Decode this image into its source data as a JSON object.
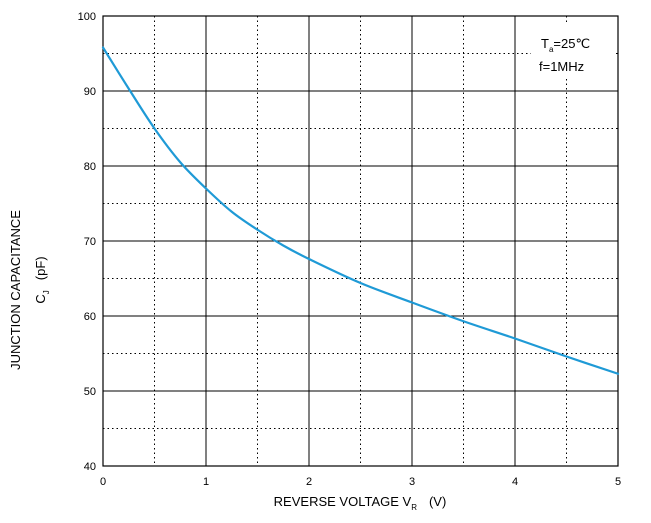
{
  "chart_data": {
    "type": "line",
    "title": "",
    "xlabel": {
      "main": "REVERSE VOLTAGE   V",
      "sub": "R",
      "unit": "(V)"
    },
    "ylabel": {
      "line1": "JUNCTION CAPACITANCE",
      "line2_main": "C",
      "line2_sub": "J",
      "line2_unit": "(pF)"
    },
    "xlim": [
      0,
      5
    ],
    "ylim": [
      40,
      100
    ],
    "xticks": [
      "0",
      "1",
      "2",
      "3",
      "4",
      "5"
    ],
    "yticks": [
      "40",
      "50",
      "60",
      "70",
      "80",
      "90",
      "100"
    ],
    "grid": {
      "major": "solid",
      "minor": "dotted"
    },
    "annotation": {
      "line1_main": "T",
      "line1_sub": "a",
      "line1_rest": "=25℃",
      "line2": "f=1MHz"
    },
    "series": [
      {
        "color": "#1f9ad6",
        "x": [
          0,
          0.25,
          0.5,
          0.75,
          1.0,
          1.25,
          1.5,
          1.75,
          2.0,
          2.5,
          3.0,
          3.5,
          4.0,
          4.5,
          5.0
        ],
        "y": [
          95.8,
          90.3,
          85.0,
          80.5,
          77.0,
          73.9,
          71.5,
          69.4,
          67.6,
          64.4,
          61.8,
          59.3,
          57.0,
          54.6,
          52.3
        ]
      }
    ]
  }
}
